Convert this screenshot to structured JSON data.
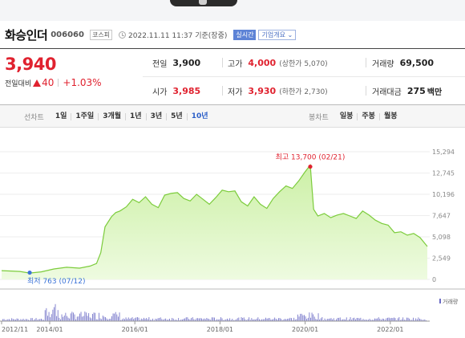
{
  "stock": {
    "name": "화승인더",
    "code": "006060",
    "market": "코스피",
    "timestamp": "2022.11.11 11:37 기준(장중)",
    "realtime_label": "실시간",
    "company_label": "기업개요"
  },
  "price": {
    "current": "3,940",
    "change_label": "전일대비",
    "change": "40",
    "change_pct": "+1.03%"
  },
  "quote": {
    "prev_close": {
      "label": "전일",
      "value": "3,900"
    },
    "high": {
      "label": "고가",
      "value": "4,000",
      "sub": "(상한가 5,070)"
    },
    "volume": {
      "label": "거래량",
      "value": "69,500"
    },
    "open": {
      "label": "시가",
      "value": "3,985"
    },
    "low": {
      "label": "저가",
      "value": "3,930",
      "sub": "(하한가 2,730)"
    },
    "amount": {
      "label": "거래대금",
      "value": "275",
      "unit": "백만"
    }
  },
  "periods": {
    "line_label": "선차트",
    "line_items": [
      "1일",
      "1주일",
      "3개월",
      "1년",
      "3년",
      "5년",
      "10년"
    ],
    "active": "10년",
    "candle_label": "봉차트",
    "candle_items": [
      "일봉",
      "주봉",
      "월봉"
    ]
  },
  "colors": {
    "up": "#e0222f",
    "line": "#7ccc3c",
    "fill": "#ccf0a6",
    "active": "#2c5fc8",
    "min_dot": "#3b73d8"
  },
  "chart_data": {
    "type": "area",
    "y_ticks": [
      "15,294",
      "12,745",
      "10,196",
      "7,647",
      "5,098",
      "2,549",
      "0"
    ],
    "ylim": [
      0,
      15294
    ],
    "x_ticks": [
      "2012/11",
      "2014/01",
      "2016/01",
      "2018/01",
      "2020/01",
      "2022/01"
    ],
    "x_tick_dates": [
      2012.87,
      2014.0,
      2016.0,
      2018.0,
      2020.0,
      2022.0
    ],
    "xlim": [
      2012.87,
      2022.87
    ],
    "max_annotation": {
      "text": "최고 13,700 (02/21)",
      "x": 2020.12,
      "y": 13700
    },
    "min_annotation": {
      "text": "최저 763 (07/12)",
      "x": 2013.53,
      "y": 763
    },
    "volume_label": "거래량",
    "series": [
      {
        "x": [
          2012.87,
          2013.1,
          2013.3,
          2013.53,
          2013.8,
          2014.1,
          2014.4,
          2014.7,
          2014.95,
          2015.1,
          2015.2,
          2015.3,
          2015.45,
          2015.55,
          2015.65,
          2015.8,
          2015.95,
          2016.1,
          2016.25,
          2016.4,
          2016.55,
          2016.7,
          2016.85,
          2017.0,
          2017.15,
          2017.3,
          2017.45,
          2017.6,
          2017.75,
          2017.9,
          2018.05,
          2018.2,
          2018.35,
          2018.5,
          2018.65,
          2018.8,
          2018.95,
          2019.1,
          2019.25,
          2019.4,
          2019.55,
          2019.7,
          2019.85,
          2020.0,
          2020.12,
          2020.2,
          2020.3,
          2020.45,
          2020.6,
          2020.75,
          2020.9,
          2021.05,
          2021.2,
          2021.35,
          2021.5,
          2021.65,
          2021.8,
          2021.95,
          2022.1,
          2022.25,
          2022.4,
          2022.55,
          2022.7,
          2022.87
        ],
        "y": [
          1050,
          1000,
          950,
          763,
          900,
          1250,
          1450,
          1350,
          1600,
          1900,
          3200,
          6300,
          7500,
          8000,
          8200,
          8700,
          9600,
          9200,
          9900,
          9000,
          8600,
          10100,
          10300,
          10400,
          9700,
          9400,
          10200,
          9600,
          9000,
          9800,
          10700,
          10500,
          10600,
          9300,
          8800,
          9900,
          9000,
          8500,
          9700,
          10500,
          11200,
          10900,
          11800,
          12900,
          13700,
          8400,
          7600,
          7900,
          7400,
          7700,
          7900,
          7600,
          7300,
          8200,
          7700,
          7100,
          6700,
          6500,
          5600,
          5700,
          5300,
          5500,
          5000,
          3940
        ]
      }
    ]
  }
}
